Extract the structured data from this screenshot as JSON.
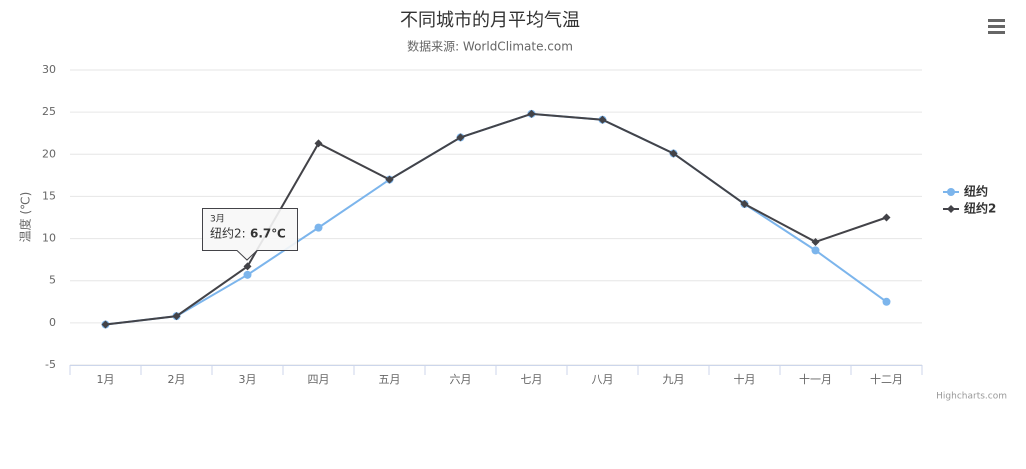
{
  "chart_data": {
    "type": "line",
    "title": "不同城市的月平均气温",
    "subtitle": "数据来源: WorldClimate.com",
    "y_axis_title": "温度 (℃)",
    "categories": [
      "1月",
      "2月",
      "3月",
      "四月",
      "五月",
      "六月",
      "七月",
      "八月",
      "九月",
      "十月",
      "十一月",
      "十二月"
    ],
    "series": [
      {
        "name": "纽约",
        "color": "#7cb5ec",
        "marker": "circle",
        "values": [
          -0.2,
          0.8,
          5.7,
          11.3,
          17.0,
          22.0,
          24.8,
          24.1,
          20.1,
          14.1,
          8.6,
          2.5
        ]
      },
      {
        "name": "纽约2",
        "color": "#434348",
        "marker": "diamond",
        "values": [
          -0.2,
          0.8,
          6.7,
          21.3,
          17.0,
          22.0,
          24.8,
          24.1,
          20.1,
          14.1,
          9.6,
          12.5
        ]
      }
    ],
    "ylim": [
      -5,
      30
    ],
    "yticks": [
      -5,
      0,
      5,
      10,
      15,
      20,
      25,
      30
    ],
    "grid": true,
    "legend": "right",
    "tooltip": {
      "header": "3月",
      "label": "纽约2:",
      "value": "6.7℃"
    },
    "credits": "Highcharts.com"
  }
}
